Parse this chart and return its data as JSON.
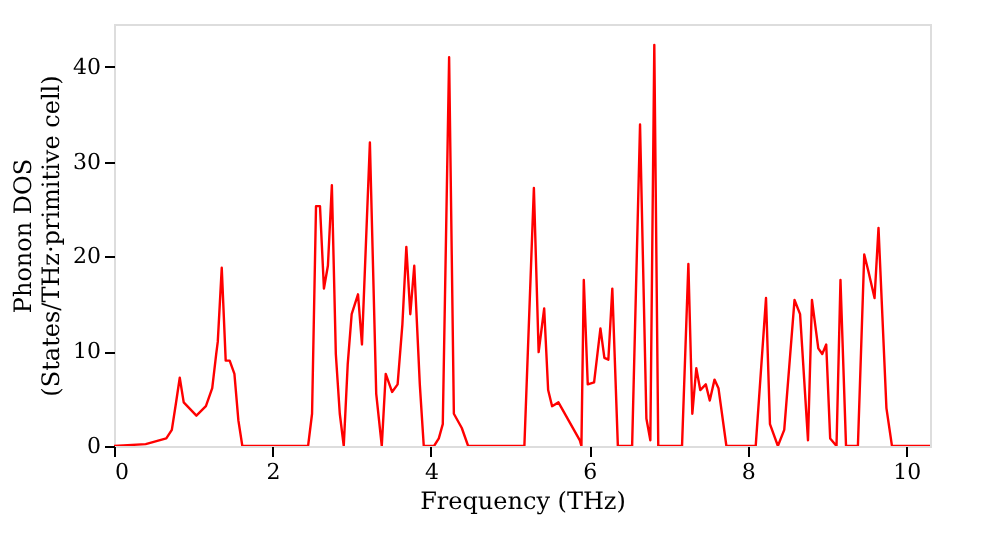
{
  "chart_data": {
    "type": "line",
    "xlabel": "Frequency (THz)",
    "ylabel": "Phonon DOS\n(States/THz·primitive cell)",
    "xlim": [
      0,
      10.3
    ],
    "ylim": [
      0,
      44.5
    ],
    "xticks": [
      0,
      2,
      4,
      6,
      8,
      10
    ],
    "yticks": [
      0,
      10,
      20,
      30,
      40
    ],
    "grid": false,
    "marker": "none",
    "line_style": "solid",
    "series": [
      {
        "color": "#ff0000",
        "x": [
          0,
          0.4,
          0.66,
          0.73,
          0.78,
          0.83,
          0.88,
          1.04,
          1.16,
          1.24,
          1.29,
          1.31,
          1.36,
          1.41,
          1.46,
          1.52,
          1.57,
          1.62,
          2.45,
          2.5,
          2.55,
          2.6,
          2.65,
          2.7,
          2.75,
          2.8,
          2.85,
          2.9,
          2.95,
          3.0,
          3.08,
          3.13,
          3.23,
          3.31,
          3.38,
          3.43,
          3.51,
          3.58,
          3.64,
          3.69,
          3.74,
          3.79,
          3.86,
          3.91,
          4.04,
          4.1,
          4.15,
          4.23,
          4.29,
          4.39,
          4.47,
          5.18,
          5.3,
          5.36,
          5.43,
          5.48,
          5.53,
          5.61,
          5.88,
          5.9,
          5.93,
          5.98,
          6.06,
          6.14,
          6.19,
          6.24,
          6.29,
          6.36,
          6.54,
          6.64,
          6.72,
          6.77,
          6.82,
          6.87,
          7.17,
          7.25,
          7.3,
          7.35,
          7.4,
          7.47,
          7.52,
          7.58,
          7.63,
          7.73,
          8.1,
          8.23,
          8.28,
          8.38,
          8.46,
          8.59,
          8.66,
          8.76,
          8.81,
          8.89,
          8.94,
          8.99,
          9.04,
          9.12,
          9.17,
          9.24,
          9.39,
          9.47,
          9.52,
          9.6,
          9.65,
          9.75,
          9.82,
          10.3
        ],
        "values": [
          0,
          0.2,
          0.8,
          1.7,
          4.4,
          7.2,
          4.6,
          3.2,
          4.2,
          6.1,
          9.7,
          11,
          18.8,
          9,
          9,
          7.6,
          2.7,
          0,
          0,
          3.4,
          25.3,
          25.3,
          16.6,
          19,
          27.5,
          9.7,
          3.4,
          0,
          8.6,
          13.9,
          16,
          10.7,
          32,
          5.5,
          0,
          7.6,
          5.7,
          6.5,
          12.8,
          21,
          13.9,
          19,
          6.5,
          0,
          0,
          0.8,
          2.3,
          41,
          3.4,
          1.9,
          0,
          0,
          27.2,
          9.9,
          14.5,
          5.9,
          4.2,
          4.6,
          0.6,
          0,
          17.5,
          6.5,
          6.7,
          12.4,
          9.3,
          9.1,
          16.6,
          0,
          0,
          33.9,
          2.9,
          0.6,
          42.3,
          0,
          0,
          19.2,
          3.4,
          8.2,
          5.9,
          6.5,
          4.8,
          7.0,
          6.1,
          0,
          0,
          15.6,
          2.3,
          0,
          1.7,
          15.4,
          13.9,
          0.6,
          15.4,
          10.3,
          9.7,
          10.7,
          0.8,
          0,
          17.5,
          0,
          0,
          20.2,
          18.5,
          15.6,
          23,
          4.0,
          0,
          0
        ]
      }
    ]
  }
}
